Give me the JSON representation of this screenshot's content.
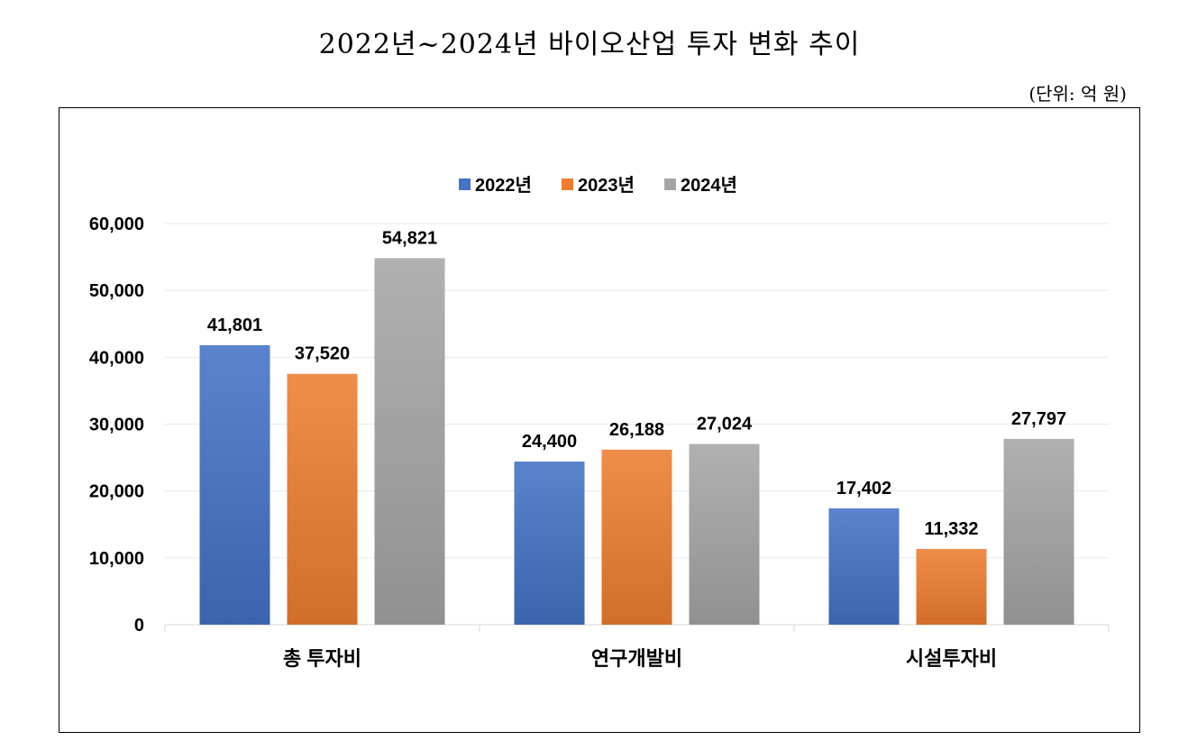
{
  "chart_data": {
    "type": "bar",
    "title": "2022년~2024년 바이오산업 투자 변화 추이",
    "unit_note": "(단위: 억 원)",
    "xlabel": "",
    "ylabel": "",
    "ylim": [
      0,
      60000
    ],
    "y_ticks": [
      0,
      10000,
      20000,
      30000,
      40000,
      50000,
      60000
    ],
    "y_tick_labels": [
      "0",
      "10,000",
      "20,000",
      "30,000",
      "40,000",
      "50,000",
      "60,000"
    ],
    "grid": true,
    "legend_position": "top-center",
    "categories": [
      "총 투자비",
      "연구개발비",
      "시설투자비"
    ],
    "series": [
      {
        "name": "2022년",
        "color": "#4472C4",
        "values": [
          41801,
          24400,
          17402
        ],
        "labels": [
          "41,801",
          "24,400",
          "17,402"
        ]
      },
      {
        "name": "2023년",
        "color": "#ED7D31",
        "values": [
          37520,
          26188,
          11332
        ],
        "labels": [
          "37,520",
          "26,188",
          "11,332"
        ]
      },
      {
        "name": "2024년",
        "color": "#A5A5A5",
        "values": [
          54821,
          27024,
          27797
        ],
        "labels": [
          "54,821",
          "27,024",
          "27,797"
        ]
      }
    ]
  }
}
